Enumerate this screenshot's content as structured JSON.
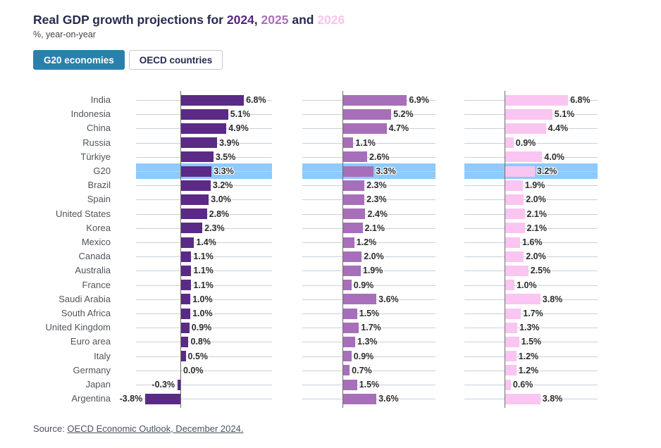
{
  "header": {
    "title_prefix": "Real GDP growth projections for ",
    "year_2024": "2024",
    "sep_1": ", ",
    "year_2025": "2025",
    "sep_2": " and ",
    "year_2026": "2026",
    "subtitle": "%, year-on-year"
  },
  "tabs": [
    {
      "label": "G20 economies",
      "active": true
    },
    {
      "label": "OECD countries",
      "active": false
    }
  ],
  "source": {
    "prefix": "Source: ",
    "link_text": "OECD Economic Outlook, December 2024."
  },
  "colors": {
    "year_2024": "#5b2a86",
    "year_2025": "#a76fb9",
    "year_2026": "#fac5f1",
    "highlight_band": "#8ecafc",
    "active_tab": "#2a80ad",
    "title_navy": "#272b4f",
    "gridline": "#c9cfdd"
  },
  "chart_data": {
    "type": "bar",
    "orientation": "horizontal",
    "title": "Real GDP growth projections for 2024, 2025 and 2026",
    "subtitle": "%, year-on-year",
    "value_suffix": "%",
    "xlim": [
      -4.8,
      10
    ],
    "grid": true,
    "highlight_category": "G20",
    "categories": [
      "India",
      "Indonesia",
      "China",
      "Russia",
      "Türkiye",
      "G20",
      "Brazil",
      "Spain",
      "United States",
      "Korea",
      "Mexico",
      "Canada",
      "Australia",
      "France",
      "Saudi Arabia",
      "South Africa",
      "United Kingdom",
      "Euro area",
      "Italy",
      "Germany",
      "Japan",
      "Argentina"
    ],
    "series": [
      {
        "name": "2024",
        "color": "#5b2a86",
        "values": [
          6.8,
          5.1,
          4.9,
          3.9,
          3.5,
          3.3,
          3.2,
          3.0,
          2.8,
          2.3,
          1.4,
          1.1,
          1.1,
          1.1,
          1.0,
          1.0,
          0.9,
          0.8,
          0.5,
          0.0,
          -0.3,
          -3.8
        ]
      },
      {
        "name": "2025",
        "color": "#a76fb9",
        "values": [
          6.9,
          5.2,
          4.7,
          1.1,
          2.6,
          3.3,
          2.3,
          2.3,
          2.4,
          2.1,
          1.2,
          2.0,
          1.9,
          0.9,
          3.6,
          1.5,
          1.7,
          1.3,
          0.9,
          0.7,
          1.5,
          3.6
        ]
      },
      {
        "name": "2026",
        "color": "#fac5f1",
        "values": [
          6.8,
          5.1,
          4.4,
          0.9,
          4.0,
          3.2,
          1.9,
          2.0,
          2.1,
          2.1,
          1.6,
          2.0,
          2.5,
          1.0,
          3.8,
          1.7,
          1.3,
          1.5,
          1.2,
          1.2,
          0.6,
          3.8
        ]
      }
    ]
  }
}
